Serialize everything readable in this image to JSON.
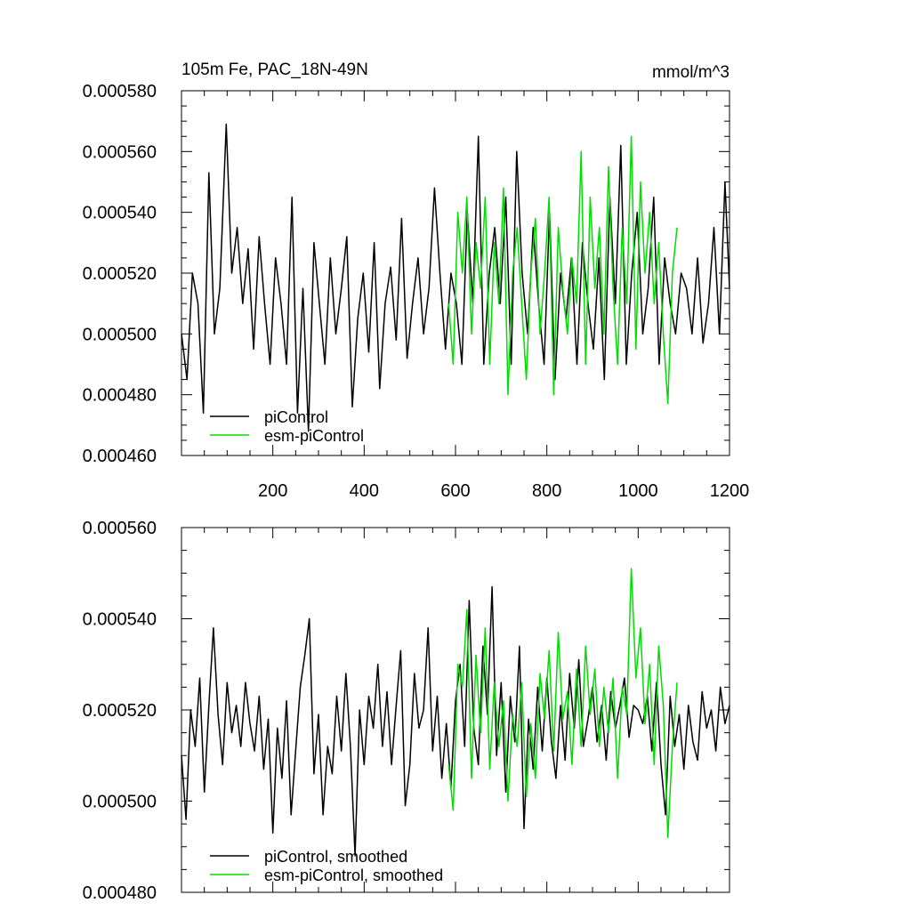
{
  "chart_data": [
    {
      "type": "line",
      "title": "105m Fe, PAC_18N-49N",
      "units": "mmol/m^3",
      "xlim": [
        0,
        1200
      ],
      "ylim": [
        0.00046,
        0.00058
      ],
      "x_ticks": [
        200,
        400,
        600,
        800,
        1000,
        1200
      ],
      "x_tick_labels": [
        "200",
        "400",
        "600",
        "800",
        "1000",
        "1200"
      ],
      "y_ticks": [
        0.00046,
        0.00048,
        0.0005,
        0.00052,
        0.00054,
        0.00056,
        0.00058
      ],
      "y_tick_labels": [
        "0.000460",
        "0.000480",
        "0.000500",
        "0.000520",
        "0.000540",
        "0.000560",
        "0.000580"
      ],
      "legend_position": "bottom-left",
      "grid": false,
      "series": [
        {
          "name": "piControl",
          "color": "#000000",
          "x": [
            0,
            12,
            24,
            36,
            48,
            60,
            72,
            84,
            98,
            110,
            122,
            134,
            146,
            158,
            170,
            182,
            194,
            206,
            218,
            230,
            242,
            254,
            266,
            278,
            290,
            302,
            314,
            326,
            338,
            350,
            362,
            374,
            386,
            398,
            410,
            422,
            434,
            446,
            458,
            470,
            482,
            494,
            506,
            518,
            530,
            542,
            554,
            566,
            578,
            590,
            602,
            614,
            626,
            638,
            650,
            662,
            674,
            686,
            698,
            710,
            722,
            734,
            746,
            758,
            770,
            782,
            794,
            806,
            818,
            830,
            842,
            854,
            866,
            878,
            890,
            902,
            914,
            926,
            938,
            950,
            962,
            974,
            986,
            998,
            1010,
            1022,
            1034,
            1046,
            1058,
            1070,
            1082,
            1094,
            1106,
            1118,
            1130,
            1142,
            1154,
            1166,
            1178,
            1190,
            1200
          ],
          "y": [
            0.0005,
            0.000485,
            0.00052,
            0.00051,
            0.000474,
            0.000553,
            0.0005,
            0.000515,
            0.000569,
            0.00052,
            0.000535,
            0.00051,
            0.000528,
            0.000495,
            0.000532,
            0.00051,
            0.00049,
            0.000525,
            0.00051,
            0.00049,
            0.000545,
            0.000474,
            0.000515,
            0.000468,
            0.00053,
            0.00051,
            0.00049,
            0.000525,
            0.0005,
            0.000515,
            0.000532,
            0.000476,
            0.000505,
            0.00052,
            0.000494,
            0.00053,
            0.000482,
            0.00051,
            0.000522,
            0.000498,
            0.000538,
            0.000492,
            0.00051,
            0.000525,
            0.0005,
            0.000515,
            0.000548,
            0.00052,
            0.000495,
            0.00052,
            0.00051,
            0.00049,
            0.00054,
            0.00051,
            0.000565,
            0.00049,
            0.00052,
            0.000535,
            0.00051,
            0.000545,
            0.00049,
            0.00056,
            0.00052,
            0.0005,
            0.000535,
            0.00051,
            0.00049,
            0.00054,
            0.000485,
            0.00052,
            0.000505,
            0.000525,
            0.00049,
            0.00053,
            0.00051,
            0.000495,
            0.000525,
            0.000485,
            0.000545,
            0.00051,
            0.000562,
            0.00049,
            0.00052,
            0.00054,
            0.0005,
            0.000515,
            0.000545,
            0.00049,
            0.000525,
            0.00051,
            0.0005,
            0.00052,
            0.000515,
            0.0005,
            0.000525,
            0.000497,
            0.00051,
            0.000535,
            0.0005,
            0.00055,
            0.000515
          ]
        },
        {
          "name": "esm-piControl",
          "color": "#00dd00",
          "x": [
            585,
            595,
            605,
            615,
            625,
            635,
            645,
            655,
            665,
            675,
            685,
            695,
            705,
            715,
            725,
            735,
            745,
            755,
            765,
            775,
            785,
            795,
            805,
            815,
            825,
            835,
            845,
            855,
            865,
            875,
            885,
            895,
            905,
            915,
            925,
            935,
            945,
            955,
            965,
            975,
            985,
            995,
            1005,
            1015,
            1025,
            1035,
            1045,
            1055,
            1065,
            1075,
            1085
          ],
          "y": [
            0.00051,
            0.00049,
            0.00054,
            0.00052,
            0.000545,
            0.0005,
            0.00053,
            0.000515,
            0.000545,
            0.00049,
            0.00053,
            0.00051,
            0.000548,
            0.00048,
            0.00052,
            0.000535,
            0.00051,
            0.000485,
            0.00052,
            0.000538,
            0.0005,
            0.00052,
            0.000545,
            0.00048,
            0.000535,
            0.000515,
            0.0005,
            0.000525,
            0.00051,
            0.00056,
            0.00049,
            0.000545,
            0.000515,
            0.000535,
            0.0005,
            0.000555,
            0.000515,
            0.00049,
            0.000535,
            0.00051,
            0.000565,
            0.000495,
            0.00055,
            0.00052,
            0.00054,
            0.00051,
            0.00053,
            0.0005,
            0.000477,
            0.00052,
            0.000535
          ]
        }
      ]
    },
    {
      "type": "line",
      "xlim": [
        0,
        1200
      ],
      "ylim": [
        0.00048,
        0.00056
      ],
      "x_ticks": [
        200,
        400,
        600,
        800,
        1000,
        1200
      ],
      "y_ticks": [
        0.00048,
        0.0005,
        0.00052,
        0.00054,
        0.00056
      ],
      "y_tick_labels": [
        "0.000480",
        "0.000500",
        "0.000520",
        "0.000540",
        "0.000560"
      ],
      "legend_position": "bottom-left",
      "grid": false,
      "series": [
        {
          "name": "piControl, smoothed",
          "color": "#000000",
          "x": [
            0,
            10,
            20,
            30,
            40,
            50,
            60,
            70,
            80,
            90,
            100,
            110,
            120,
            130,
            140,
            150,
            160,
            170,
            180,
            190,
            200,
            210,
            220,
            230,
            240,
            250,
            260,
            270,
            280,
            290,
            300,
            310,
            320,
            330,
            340,
            350,
            360,
            370,
            380,
            390,
            400,
            410,
            420,
            430,
            440,
            450,
            460,
            470,
            480,
            490,
            500,
            510,
            520,
            530,
            540,
            550,
            560,
            570,
            580,
            590,
            600,
            610,
            620,
            630,
            640,
            650,
            660,
            670,
            680,
            690,
            700,
            710,
            720,
            730,
            740,
            750,
            760,
            770,
            780,
            790,
            800,
            810,
            820,
            830,
            840,
            850,
            860,
            870,
            880,
            890,
            900,
            910,
            920,
            930,
            940,
            950,
            960,
            970,
            980,
            990,
            1000,
            1010,
            1020,
            1030,
            1040,
            1050,
            1060,
            1070,
            1080,
            1090,
            1100,
            1110,
            1120,
            1130,
            1140,
            1150,
            1160,
            1170,
            1180,
            1190,
            1200
          ],
          "y": [
            0.00051,
            0.000496,
            0.00052,
            0.000512,
            0.000527,
            0.000502,
            0.000521,
            0.000538,
            0.000519,
            0.000508,
            0.000526,
            0.000515,
            0.000521,
            0.000512,
            0.000526,
            0.000517,
            0.000511,
            0.000523,
            0.000507,
            0.000518,
            0.000493,
            0.000516,
            0.000505,
            0.000522,
            0.000497,
            0.000511,
            0.000525,
            0.000532,
            0.00054,
            0.000506,
            0.000519,
            0.000497,
            0.000512,
            0.000506,
            0.000523,
            0.000511,
            0.000528,
            0.000512,
            0.000488,
            0.00052,
            0.000508,
            0.000523,
            0.000516,
            0.00053,
            0.000512,
            0.000524,
            0.000508,
            0.000521,
            0.000533,
            0.000499,
            0.000508,
            0.000528,
            0.000516,
            0.00052,
            0.000538,
            0.000511,
            0.000523,
            0.000505,
            0.000517,
            0.000503,
            0.000522,
            0.00053,
            0.000512,
            0.000544,
            0.000516,
            0.000508,
            0.000534,
            0.000519,
            0.000547,
            0.00051,
            0.000526,
            0.000502,
            0.000523,
            0.000513,
            0.000534,
            0.000494,
            0.000518,
            0.000507,
            0.000525,
            0.000511,
            0.000527,
            0.000513,
            0.000505,
            0.000521,
            0.000509,
            0.000528,
            0.000516,
            0.000531,
            0.000512,
            0.000518,
            0.000525,
            0.000513,
            0.000521,
            0.000509,
            0.000524,
            0.000516,
            0.000521,
            0.000527,
            0.000514,
            0.000521,
            0.00052,
            0.000517,
            0.000523,
            0.000511,
            0.000526,
            0.000508,
            0.000497,
            0.000523,
            0.000512,
            0.000519,
            0.000507,
            0.000521,
            0.000513,
            0.000509,
            0.000524,
            0.000516,
            0.00052,
            0.000511,
            0.000525,
            0.000517,
            0.000521
          ]
        },
        {
          "name": "esm-piControl, smoothed",
          "color": "#00dd00",
          "x": [
            585,
            595,
            605,
            615,
            625,
            635,
            645,
            655,
            665,
            675,
            685,
            695,
            705,
            715,
            725,
            735,
            745,
            755,
            765,
            775,
            785,
            795,
            805,
            815,
            825,
            835,
            845,
            855,
            865,
            875,
            885,
            895,
            905,
            915,
            925,
            935,
            945,
            955,
            965,
            975,
            985,
            995,
            1005,
            1015,
            1025,
            1035,
            1045,
            1055,
            1065,
            1075,
            1085
          ],
          "y": [
            0.000508,
            0.000498,
            0.00053,
            0.000525,
            0.000542,
            0.000505,
            0.000532,
            0.000515,
            0.000538,
            0.000507,
            0.000526,
            0.000512,
            0.000522,
            0.0005,
            0.000519,
            0.000512,
            0.000526,
            0.000501,
            0.000517,
            0.000505,
            0.000528,
            0.000518,
            0.000533,
            0.000511,
            0.000537,
            0.000518,
            0.000524,
            0.000508,
            0.000529,
            0.000512,
            0.000534,
            0.000519,
            0.000529,
            0.000512,
            0.000525,
            0.000515,
            0.000527,
            0.000505,
            0.000525,
            0.000519,
            0.000551,
            0.000527,
            0.000538,
            0.000517,
            0.00053,
            0.000508,
            0.000534,
            0.000521,
            0.000492,
            0.000512,
            0.000526
          ]
        }
      ]
    }
  ]
}
